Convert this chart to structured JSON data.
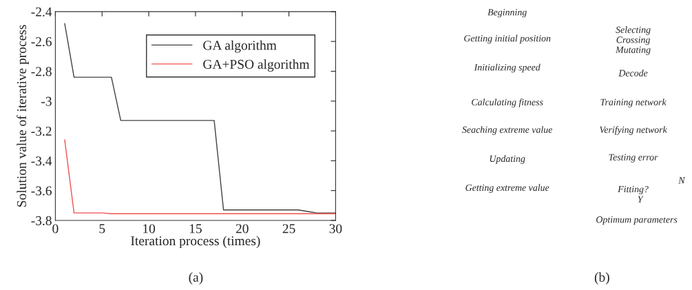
{
  "chart_data": [
    {
      "type": "line",
      "xlabel": "Iteration process (times)",
      "ylabel": "Solution value of iterative process",
      "xlim": [
        0,
        30
      ],
      "xticks": [
        0,
        5,
        10,
        15,
        20,
        25,
        30
      ],
      "ylim": [
        -3.8,
        -2.4
      ],
      "yticks": [
        -3.8,
        -3.6,
        -3.4,
        -3.2,
        -3,
        -2.8,
        -2.6,
        -2.4
      ],
      "grid": false,
      "legend": "top right",
      "marker": "none",
      "line_style": "solid",
      "series": [
        {
          "name": "GA algorithm",
          "color": "#404040",
          "x": [
            1,
            2,
            6,
            7,
            17,
            18,
            26,
            27,
            28,
            30
          ],
          "values": [
            -2.48,
            -2.84,
            -2.84,
            -3.13,
            -3.13,
            -3.73,
            -3.73,
            -3.74,
            -3.75,
            -3.75
          ]
        },
        {
          "name": "GA+PSO algorithm",
          "color": "#f05050",
          "x": [
            1,
            2,
            5,
            6,
            30
          ],
          "values": [
            -3.26,
            -3.75,
            -3.75,
            -3.755,
            -3.755
          ]
        }
      ],
      "annotations": [
        "(a)"
      ]
    },
    {
      "type": "other",
      "annotations": [
        "Beginning",
        "Getting initial position",
        "Initializing speed",
        "Calculating fitness",
        "Seaching extreme value",
        "Updating",
        "Getting extreme value",
        "Selecting\nCrossing\nMutating",
        "Decode",
        "Training network",
        "Verifying network",
        "Testing error",
        "Fitting?",
        "Y",
        "N",
        "Optimum parameters",
        "(b)"
      ]
    }
  ]
}
